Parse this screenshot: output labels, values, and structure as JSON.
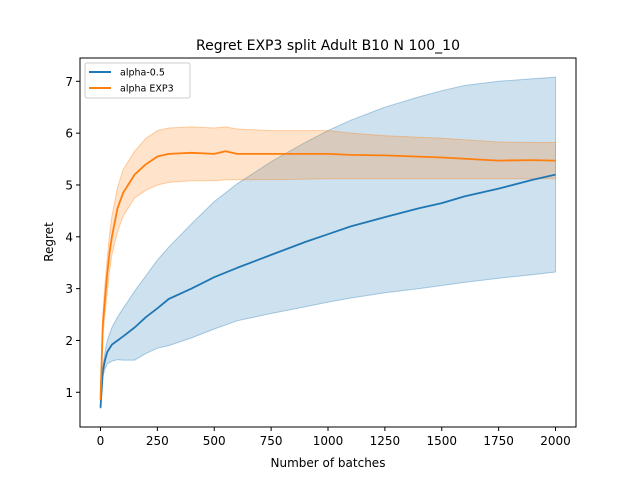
{
  "chart_data": {
    "type": "line",
    "title": "Regret EXP3 split Adult B10 N 100_10",
    "xlabel": "Number of batches",
    "ylabel": "Regret",
    "xlim": [
      -90,
      2090
    ],
    "ylim": [
      0.33,
      7.45
    ],
    "xticks": [
      0,
      250,
      500,
      750,
      1000,
      1250,
      1500,
      1750,
      2000
    ],
    "yticks": [
      1,
      2,
      3,
      4,
      5,
      6,
      7
    ],
    "grid": false,
    "legend_position": "top-left",
    "series": [
      {
        "name": "alpha-0.5",
        "color": "#1f77b4",
        "x": [
          0,
          10,
          20,
          30,
          50,
          75,
          100,
          150,
          200,
          250,
          300,
          400,
          500,
          600,
          750,
          900,
          1000,
          1100,
          1250,
          1400,
          1500,
          1600,
          1750,
          1900,
          2000
        ],
        "y": [
          0.7,
          1.4,
          1.62,
          1.78,
          1.92,
          2.0,
          2.08,
          2.25,
          2.45,
          2.62,
          2.8,
          3.0,
          3.22,
          3.4,
          3.65,
          3.9,
          4.05,
          4.2,
          4.38,
          4.55,
          4.65,
          4.78,
          4.93,
          5.1,
          5.2
        ],
        "lower": [
          0.68,
          1.3,
          1.45,
          1.55,
          1.6,
          1.63,
          1.62,
          1.62,
          1.75,
          1.85,
          1.9,
          2.05,
          2.22,
          2.38,
          2.52,
          2.65,
          2.74,
          2.82,
          2.92,
          3.0,
          3.06,
          3.12,
          3.2,
          3.27,
          3.32
        ],
        "upper": [
          0.72,
          1.5,
          1.78,
          2.0,
          2.25,
          2.45,
          2.62,
          2.95,
          3.25,
          3.55,
          3.8,
          4.25,
          4.68,
          5.02,
          5.45,
          5.82,
          6.05,
          6.25,
          6.5,
          6.7,
          6.82,
          6.92,
          7.0,
          7.05,
          7.08
        ]
      },
      {
        "name": "alpha EXP3",
        "color": "#ff7f0e",
        "x": [
          0,
          10,
          20,
          30,
          40,
          50,
          75,
          100,
          150,
          200,
          250,
          300,
          400,
          500,
          550,
          600,
          750,
          1000,
          1100,
          1250,
          1500,
          1750,
          1900,
          2000
        ],
        "y": [
          0.85,
          2.3,
          2.8,
          3.3,
          3.7,
          4.0,
          4.55,
          4.85,
          5.2,
          5.4,
          5.55,
          5.6,
          5.62,
          5.6,
          5.65,
          5.6,
          5.6,
          5.6,
          5.58,
          5.57,
          5.53,
          5.47,
          5.48,
          5.47
        ],
        "lower": [
          0.8,
          2.1,
          2.5,
          2.95,
          3.35,
          3.65,
          4.1,
          4.4,
          4.75,
          4.9,
          5.0,
          5.05,
          5.08,
          5.08,
          5.1,
          5.1,
          5.1,
          5.12,
          5.12,
          5.12,
          5.12,
          5.12,
          5.12,
          5.12
        ],
        "upper": [
          0.9,
          2.5,
          3.1,
          3.6,
          4.05,
          4.4,
          4.95,
          5.3,
          5.65,
          5.9,
          6.05,
          6.1,
          6.12,
          6.1,
          6.12,
          6.08,
          6.05,
          6.05,
          6.0,
          5.95,
          5.9,
          5.83,
          5.82,
          5.82
        ]
      }
    ]
  }
}
